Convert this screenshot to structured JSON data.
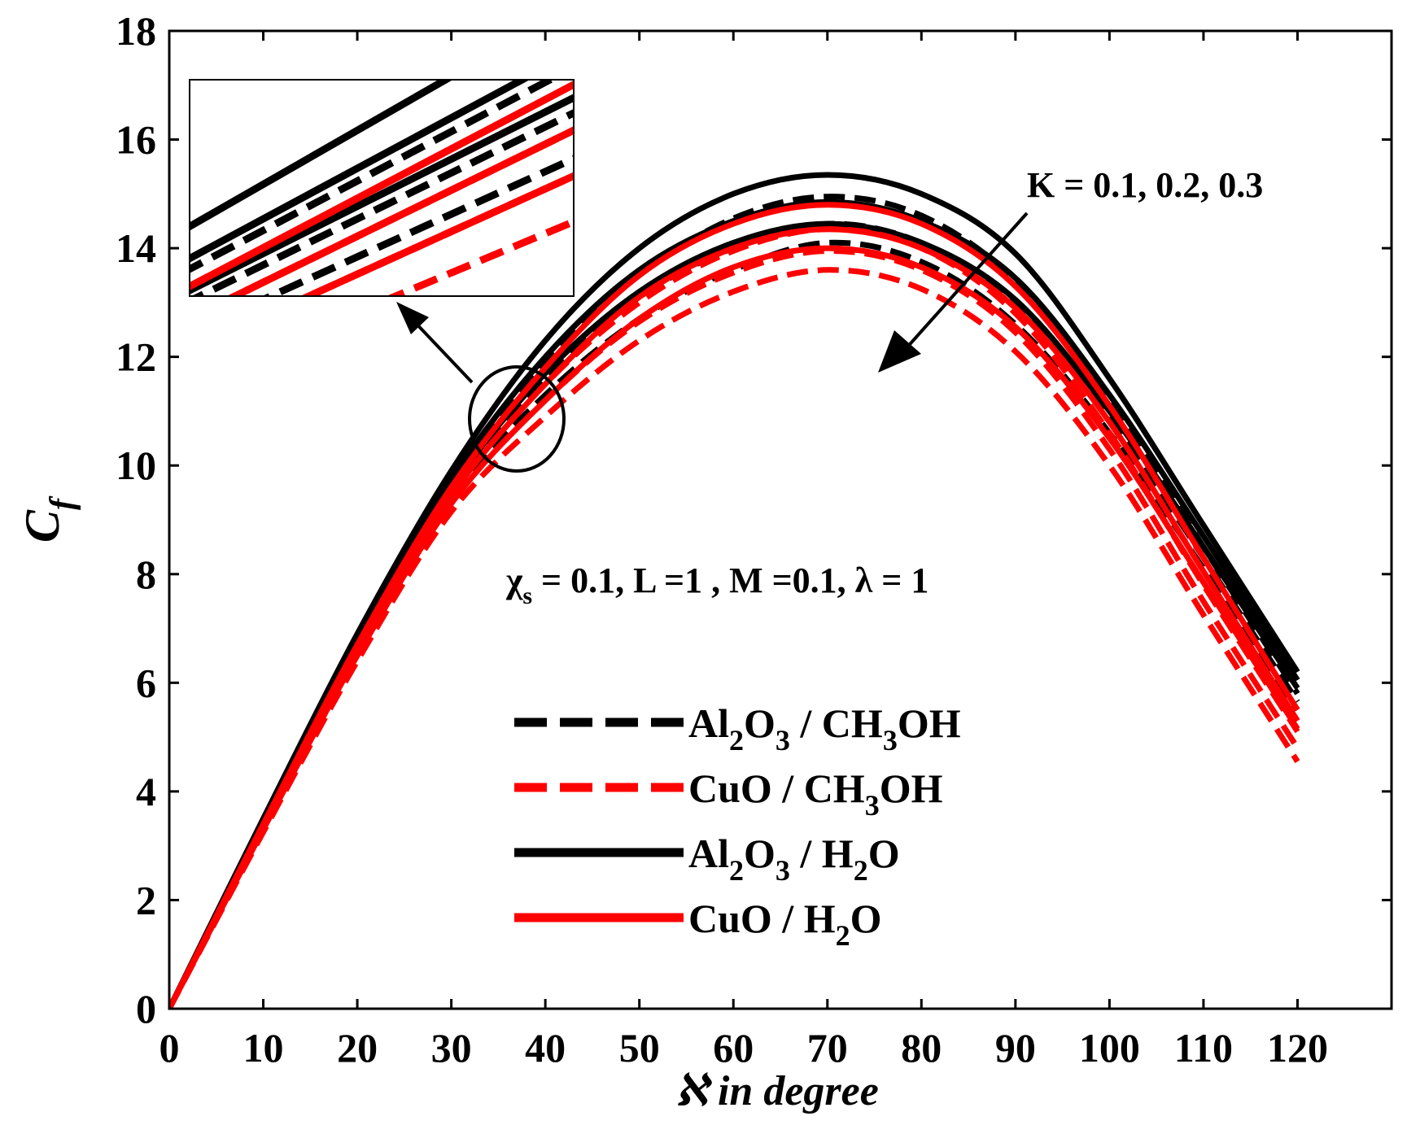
{
  "chart_data": {
    "type": "line",
    "title": "",
    "xlabel": "ℵ in degree",
    "ylabel_main": "C",
    "ylabel_sub": "f",
    "xlim": [
      0,
      130
    ],
    "ylim": [
      0,
      18
    ],
    "x_ticks": [
      0,
      10,
      20,
      30,
      40,
      50,
      60,
      70,
      80,
      90,
      100,
      110,
      120
    ],
    "y_ticks": [
      0,
      2,
      4,
      6,
      8,
      10,
      12,
      14,
      16,
      18
    ],
    "grid": false,
    "annotation_k": "K = 0.1, 0.2, 0.3",
    "params": {
      "chi": "χ",
      "chi_sub": "s",
      "rest": " = 0.1, L =1 , M  =0.1, λ = 1"
    },
    "colors": {
      "black": "#000000",
      "red": "#ff0000"
    },
    "legend": [
      {
        "key": "al2o3_ch3oh",
        "color": "#000000",
        "dash": "dashed",
        "parts": [
          [
            "Al",
            ""
          ],
          [
            "2",
            "sub"
          ],
          [
            "O",
            ""
          ],
          [
            "3",
            "sub"
          ],
          [
            " / CH",
            ""
          ],
          [
            "3",
            "sub"
          ],
          [
            "OH",
            ""
          ]
        ]
      },
      {
        "key": "cuo_ch3oh",
        "color": "#ff0000",
        "dash": "dashed",
        "parts": [
          [
            "CuO / CH",
            ""
          ],
          [
            "3",
            "sub"
          ],
          [
            "OH",
            ""
          ]
        ]
      },
      {
        "key": "al2o3_h2o",
        "color": "#000000",
        "dash": "solid",
        "parts": [
          [
            "Al",
            ""
          ],
          [
            "2",
            "sub"
          ],
          [
            "O",
            ""
          ],
          [
            "3",
            "sub"
          ],
          [
            " / H",
            ""
          ],
          [
            "2",
            "sub"
          ],
          [
            "O",
            ""
          ]
        ]
      },
      {
        "key": "cuo_h2o",
        "color": "#ff0000",
        "dash": "solid",
        "parts": [
          [
            "CuO / H",
            ""
          ],
          [
            "2",
            "sub"
          ],
          [
            "O",
            ""
          ]
        ]
      }
    ],
    "x": [
      0,
      10,
      20,
      30,
      40,
      50,
      60,
      70,
      80,
      90,
      100,
      110,
      120
    ],
    "series": [
      {
        "name": "Al2O3 / H2O, K = 0.1",
        "color": "#000000",
        "dash": "solid",
        "values": [
          0,
          3.5,
          6.9,
          9.9,
          12.3,
          14.0,
          15.0,
          15.35,
          15.0,
          13.9,
          11.6,
          8.9,
          6.2
        ]
      },
      {
        "name": "Al2O3 / H2O, K = 0.2",
        "color": "#000000",
        "dash": "solid",
        "values": [
          0,
          3.45,
          6.8,
          9.75,
          12.0,
          13.6,
          14.5,
          14.85,
          14.5,
          13.45,
          11.3,
          8.7,
          6.05
        ]
      },
      {
        "name": "Al2O3 / H2O, K = 0.3",
        "color": "#000000",
        "dash": "solid",
        "values": [
          0,
          3.4,
          6.7,
          9.6,
          11.7,
          13.2,
          14.1,
          14.45,
          14.1,
          13.05,
          11.0,
          8.5,
          5.9
        ]
      },
      {
        "name": "Al2O3 / CH3OH, K = 0.1",
        "color": "#000000",
        "dash": "dashed",
        "values": [
          0,
          3.45,
          6.8,
          9.7,
          11.9,
          13.5,
          14.55,
          14.95,
          14.6,
          13.4,
          11.2,
          8.5,
          5.8
        ]
      },
      {
        "name": "Al2O3 / CH3OH, K = 0.2",
        "color": "#000000",
        "dash": "dashed",
        "values": [
          0,
          3.4,
          6.7,
          9.55,
          11.6,
          13.1,
          14.0,
          14.45,
          14.1,
          13.0,
          10.9,
          8.3,
          5.65
        ]
      },
      {
        "name": "Al2O3 / CH3OH, K = 0.3",
        "color": "#000000",
        "dash": "dashed",
        "values": [
          0,
          3.35,
          6.6,
          9.4,
          11.3,
          12.7,
          13.6,
          14.1,
          13.75,
          12.6,
          10.6,
          8.1,
          5.5
        ]
      },
      {
        "name": "CuO / H2O, K = 0.1",
        "color": "#ff0000",
        "dash": "solid",
        "values": [
          0,
          3.4,
          6.7,
          9.6,
          11.8,
          13.5,
          14.45,
          14.8,
          14.45,
          13.3,
          11.1,
          8.3,
          5.5
        ]
      },
      {
        "name": "CuO / H2O, K = 0.2",
        "color": "#ff0000",
        "dash": "solid",
        "values": [
          0,
          3.35,
          6.6,
          9.45,
          11.5,
          13.1,
          14.0,
          14.35,
          14.0,
          12.9,
          10.8,
          8.05,
          5.3
        ]
      },
      {
        "name": "CuO / H2O, K = 0.3",
        "color": "#ff0000",
        "dash": "solid",
        "values": [
          0,
          3.3,
          6.5,
          9.3,
          11.2,
          12.7,
          13.65,
          14.0,
          13.65,
          12.55,
          10.5,
          7.85,
          5.15
        ]
      },
      {
        "name": "CuO / CH3OH, K = 0.1",
        "color": "#ff0000",
        "dash": "dashed",
        "values": [
          0,
          3.35,
          6.6,
          9.45,
          11.5,
          13.0,
          13.95,
          14.35,
          14.0,
          12.8,
          10.6,
          7.8,
          5.1
        ]
      },
      {
        "name": "CuO / CH3OH, K = 0.2",
        "color": "#ff0000",
        "dash": "dashed",
        "values": [
          0,
          3.3,
          6.5,
          9.3,
          11.2,
          12.65,
          13.55,
          13.95,
          13.6,
          12.45,
          10.3,
          7.5,
          4.8
        ]
      },
      {
        "name": "CuO / CH3OH, K = 0.3",
        "color": "#ff0000",
        "dash": "dashed",
        "values": [
          0,
          3.25,
          6.4,
          9.15,
          10.9,
          12.3,
          13.2,
          13.6,
          13.25,
          12.1,
          10.0,
          7.25,
          4.55
        ]
      }
    ]
  }
}
